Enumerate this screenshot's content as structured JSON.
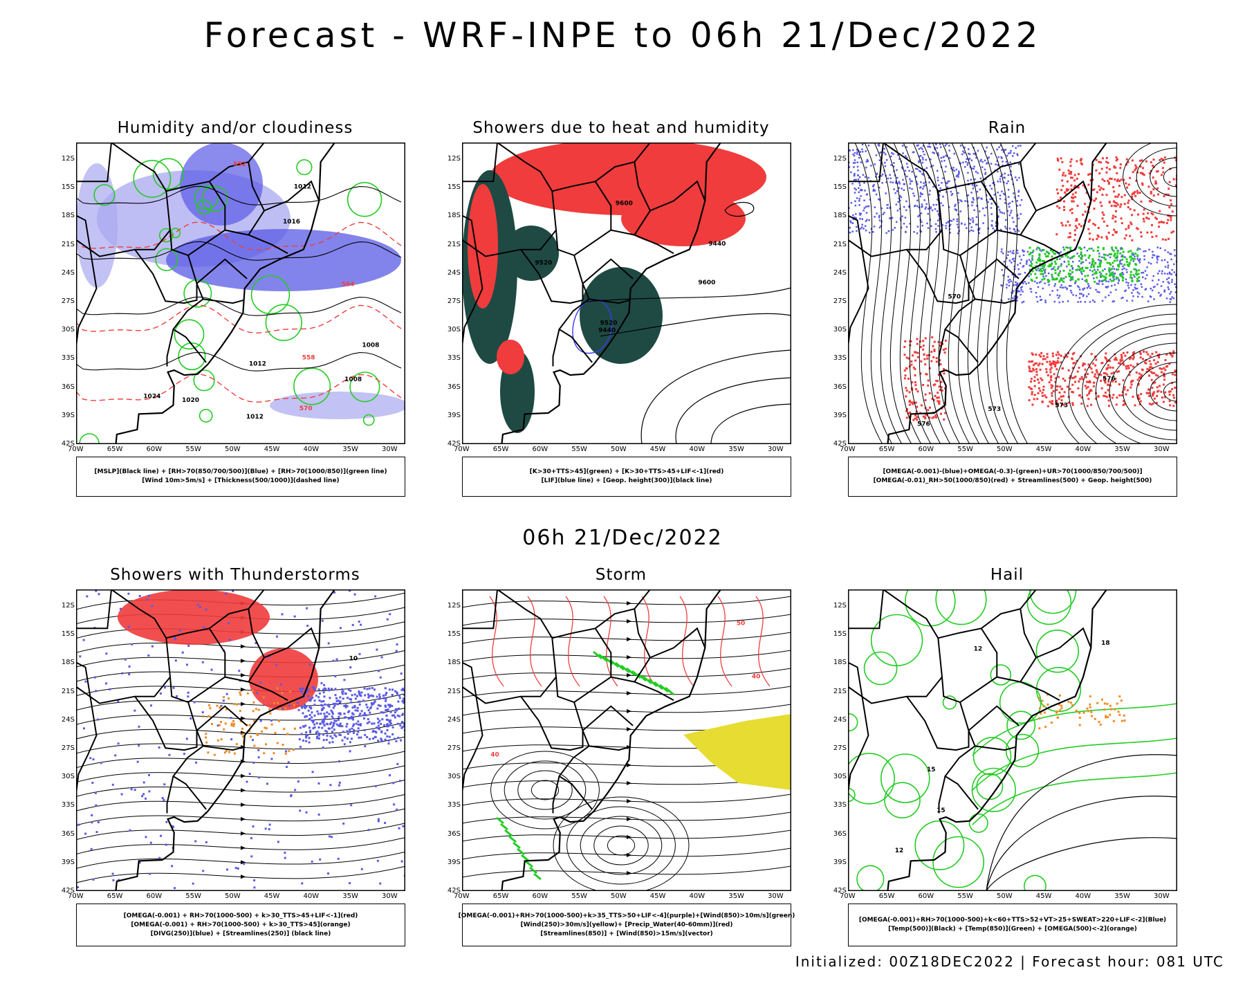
{
  "title": "Forecast - WRF-INPE to 06h 21/Dec/2022",
  "mid_title": "06h 21/Dec/2022",
  "footer": "Initialized: 00Z18DEC2022 | Forecast hour: 081 UTC",
  "lat_labels": [
    "12S",
    "15S",
    "18S",
    "21S",
    "24S",
    "27S",
    "30S",
    "33S",
    "36S",
    "39S",
    "42S"
  ],
  "lon_labels": [
    "70W",
    "65W",
    "60W",
    "55W",
    "50W",
    "45W",
    "40W",
    "35W",
    "30W"
  ],
  "colors": {
    "blue": "#5a5ae6",
    "lightblue": "#a8a8f0",
    "green": "#22cc22",
    "red": "#f03c3c",
    "darkgreen": "#1f4a44",
    "orange": "#ee8a22",
    "yellow": "#e6dc32",
    "contour": "#000000"
  },
  "panels": [
    {
      "id": "humidity",
      "title": "Humidity and/or cloudiness",
      "legend": [
        "[MSLP](Black line) + [RH>70(850/700/500)](Blue) + [RH>70(1000/850)](green line)",
        "[Wind 10m>5m/s] + [Thickness(500/1000)](dashed line)"
      ],
      "labels": [
        "1012",
        "1008",
        "1012",
        "1016",
        "1008",
        "1012",
        "1020",
        "1024",
        "570",
        "564",
        "558",
        "552"
      ]
    },
    {
      "id": "showers-heat",
      "title": "Showers due to heat and humidity",
      "legend": [
        "[K>30+TTS>45](green) + [K>30+TTS>45+LIF<-1](red)",
        "[LIF](blue line) + [Geop. height(300)](black line)"
      ],
      "labels": [
        "9600",
        "9520",
        "9440",
        "9520",
        "9440",
        "9600"
      ]
    },
    {
      "id": "rain",
      "title": "Rain",
      "legend": [
        "[OMEGA(-0.001)-(blue)+OMEGA(-0.3)-(green)+UR>70(1000/850/700/500)]",
        "[OMEGA(-0.01)_RH>50(1000/850)(red) + Streamlines(500) + Geop. height(500)"
      ],
      "labels": [
        "576",
        "573",
        "570",
        "576",
        "573"
      ]
    },
    {
      "id": "thunder",
      "title": "Showers with Thunderstorms",
      "legend": [
        "[OMEGA(-0.001) + RH>70(1000-500) + k>30_TTS>45+LIF<-1](red)",
        "[OMEGA(-0.001) + RH>70(1000-500) + k>30_TTS>45](orange)",
        "[DIVG(250)](blue) + [Streamlines(250)] (black line)"
      ],
      "labels": [
        "10"
      ]
    },
    {
      "id": "storm",
      "title": "Storm",
      "legend": [
        "[OMEGA(-0.001)+RH>70(1000-500)+k>35_TTS>50+LIF<-4](purple)+[Wind(850)>10m/s](green)",
        "[Wind(250)>30m/s](yellow)+ [Precip_Water(40-60mm)](red)",
        "[Streamlines(850)] + [Wind(850)>15m/s](vector)"
      ],
      "labels": [
        "40",
        "50",
        "40"
      ]
    },
    {
      "id": "hail",
      "title": "Hail",
      "legend": [
        "[OMEGA(-0.001)+RH>70(1000-500)+k<60+TTS>52+VT>25+SWEAT>220+LIF<-2](Blue)",
        "[Temp(500)](Black) + [Temp(850)](Green) + [OMEGA(500)<-2](orange)"
      ],
      "labels": [
        "12",
        "15",
        "18",
        "12",
        "15"
      ]
    }
  ]
}
